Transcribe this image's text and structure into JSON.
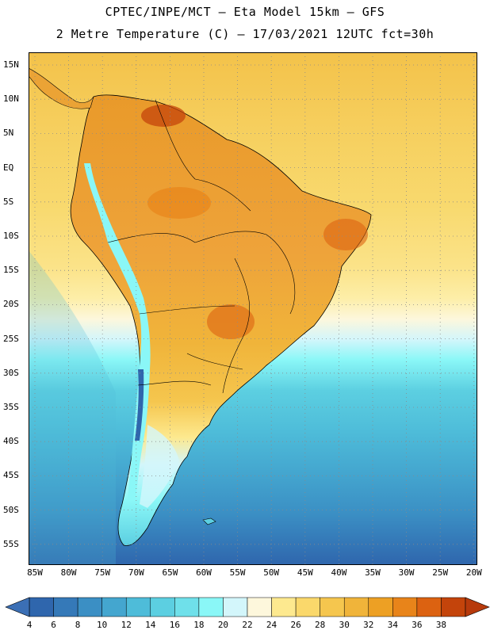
{
  "title": {
    "line1": "CPTEC/INPE/MCT –  Eta Model 15km – GFS",
    "line2": "2 Metre Temperature (C) – 17/03/2021 12UTC fct=30h"
  },
  "map": {
    "lat_labels": [
      "15N",
      "10N",
      "5N",
      "EQ",
      "5S",
      "10S",
      "15S",
      "20S",
      "25S",
      "30S",
      "35S",
      "40S",
      "45S",
      "50S",
      "55S"
    ],
    "lon_labels": [
      "85W",
      "80W",
      "75W",
      "70W",
      "65W",
      "60W",
      "55W",
      "50W",
      "45W",
      "40W",
      "35W",
      "30W",
      "25W",
      "20W"
    ],
    "grid": "dotted"
  },
  "colorbar": {
    "labels": [
      "4",
      "6",
      "8",
      "10",
      "12",
      "14",
      "16",
      "18",
      "20",
      "22",
      "24",
      "26",
      "28",
      "30",
      "32",
      "34",
      "36",
      "38"
    ],
    "colors": [
      "#2f66ad",
      "#3579b8",
      "#3b8fc4",
      "#44a6cf",
      "#4ebcd9",
      "#5ccfe1",
      "#6fe0ea",
      "#8af7f7",
      "#d3f6fb",
      "#fdf7dc",
      "#fde98f",
      "#fad86b",
      "#f5c64e",
      "#f0b43a",
      "#eda024",
      "#e8841a",
      "#dc6211",
      "#c4440b"
    ],
    "below_color": "#3b6fb5",
    "above_color": "#b73a0c"
  }
}
